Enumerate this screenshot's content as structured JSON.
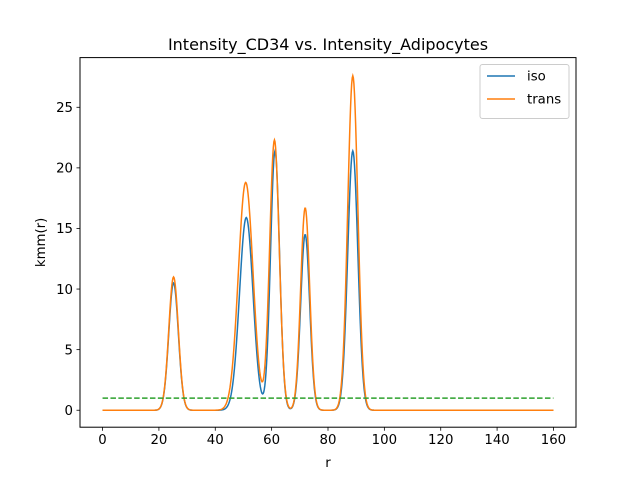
{
  "chart_data": {
    "type": "line",
    "title": "Intensity_CD34 vs. Intensity_Adipocytes",
    "xlabel": "r",
    "ylabel": "kmm(r)",
    "xlim": [
      -8,
      168
    ],
    "ylim": [
      -1.4,
      29.1
    ],
    "xticks": [
      0,
      20,
      40,
      60,
      80,
      100,
      120,
      140,
      160
    ],
    "yticks": [
      0,
      5,
      10,
      15,
      20,
      25
    ],
    "grid": false,
    "legend_position": "top-right",
    "x_range": [
      0,
      160
    ],
    "series": [
      {
        "name": "iso",
        "color": "#1f77b4",
        "style": "solid",
        "peaks": [
          {
            "x": 25.2,
            "y": 10.5,
            "width": 1.7
          },
          {
            "x": 51.0,
            "y": 15.9,
            "width": 2.4
          },
          {
            "x": 61.2,
            "y": 21.4,
            "width": 1.6
          },
          {
            "x": 71.9,
            "y": 14.5,
            "width": 1.6
          },
          {
            "x": 88.8,
            "y": 21.4,
            "width": 1.8
          }
        ]
      },
      {
        "name": "trans",
        "color": "#ff7f0e",
        "style": "solid",
        "peaks": [
          {
            "x": 25.2,
            "y": 11.0,
            "width": 1.7
          },
          {
            "x": 50.8,
            "y": 18.8,
            "width": 2.6
          },
          {
            "x": 61.0,
            "y": 22.3,
            "width": 1.7
          },
          {
            "x": 71.9,
            "y": 16.7,
            "width": 1.6
          },
          {
            "x": 88.8,
            "y": 27.6,
            "width": 1.8
          }
        ]
      },
      {
        "name": "",
        "color": "#2ca02c",
        "style": "dashed",
        "constant": 1.0
      }
    ]
  }
}
